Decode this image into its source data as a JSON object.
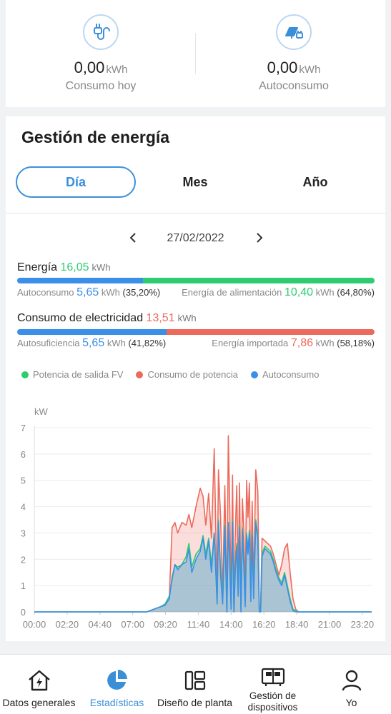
{
  "summary": {
    "consumo": {
      "value": "0,00",
      "unit": "kWh",
      "label": "Consumo hoy",
      "icon": "plug-icon"
    },
    "autoconsumo": {
      "value": "0,00",
      "unit": "kWh",
      "label": "Autoconsumo",
      "icon": "solar-panel-icon"
    }
  },
  "section_title": "Gestión de energía",
  "tabs": [
    {
      "label": "Día",
      "active": true
    },
    {
      "label": "Mes",
      "active": false
    },
    {
      "label": "Año",
      "active": false
    }
  ],
  "date": "27/02/2022",
  "energia": {
    "title": "Energía",
    "value": "16,05",
    "unit": "kWh",
    "bar_fractions": [
      0.352,
      0.648
    ],
    "left": {
      "label": "Autoconsumo",
      "value": "5,65",
      "unit": "kWh",
      "pct": "(35,20%)"
    },
    "right": {
      "label": "Energía de alimentación",
      "value": "10,40",
      "unit": "kWh",
      "pct": "(64,80%)"
    }
  },
  "consumo_elec": {
    "title": "Consumo de electricidad",
    "value": "13,51",
    "unit": "kWh",
    "bar_fractions": [
      0.4182,
      0.5818
    ],
    "left": {
      "label": "Autosuficiencia",
      "value": "5,65",
      "unit": "kWh",
      "pct": "(41,82%)"
    },
    "right": {
      "label": "Energía importada",
      "value": "7,86",
      "unit": "kWh",
      "pct": "(58,18%)"
    }
  },
  "colors": {
    "blue": "#3b8fe8",
    "green": "#2ecc71",
    "red": "#ec6a5c",
    "accent": "#3b8fd9"
  },
  "chart_data": {
    "type": "area",
    "ylabel": "kW",
    "ylim": [
      0,
      7
    ],
    "yticks": [
      "0",
      "1",
      "2",
      "3",
      "4",
      "5",
      "6",
      "7"
    ],
    "xlim": [
      0,
      24
    ],
    "xticks": [
      "00:00",
      "02:20",
      "04:40",
      "07:00",
      "09:20",
      "11:40",
      "14:00",
      "16:20",
      "18:40",
      "21:00",
      "23:20"
    ],
    "legend": [
      "Potencia de salida FV",
      "Consumo de potencia",
      "Autoconsumo"
    ],
    "x": [
      0,
      8.0,
      8.5,
      9.0,
      9.3,
      9.6,
      9.8,
      10.0,
      10.2,
      10.5,
      10.8,
      11.0,
      11.2,
      11.5,
      11.8,
      12.0,
      12.2,
      12.4,
      12.6,
      12.8,
      13.0,
      13.1,
      13.25,
      13.4,
      13.55,
      13.7,
      13.8,
      13.9,
      14.0,
      14.1,
      14.2,
      14.3,
      14.4,
      14.5,
      14.6,
      14.7,
      14.8,
      14.9,
      15.0,
      15.1,
      15.2,
      15.3,
      15.4,
      15.5,
      15.6,
      15.75,
      15.9,
      16.0,
      16.1,
      16.2,
      16.4,
      16.6,
      16.8,
      17.0,
      17.2,
      17.4,
      17.6,
      17.8,
      18.0,
      18.2,
      18.4,
      18.6,
      18.8,
      19.0,
      24
    ],
    "series": [
      {
        "name": "Potencia de salida FV",
        "values": [
          0,
          0,
          0.1,
          0.2,
          0.3,
          0.6,
          1.2,
          1.8,
          1.7,
          1.8,
          2.1,
          2.6,
          1.7,
          2.2,
          2.4,
          2.9,
          2.2,
          2.8,
          1.8,
          3.0,
          0.4,
          3.5,
          1.6,
          0.5,
          3.3,
          0,
          3.4,
          2.0,
          0.2,
          3.5,
          0,
          1.8,
          2.6,
          0.8,
          3.3,
          0.1,
          3.2,
          2.0,
          0.3,
          3.0,
          2.4,
          3.1,
          0.6,
          3.0,
          0.7,
          3.5,
          2.9,
          0.1,
          0.1,
          2.2,
          2.5,
          2.4,
          2.3,
          2.0,
          1.6,
          1.3,
          1.1,
          1.5,
          1.0,
          0.5,
          0.1,
          0.05,
          0,
          0,
          0
        ]
      },
      {
        "name": "Consumo de potencia",
        "values": [
          0,
          0,
          0.1,
          0.2,
          0.3,
          0.5,
          3.2,
          3.4,
          3.0,
          3.4,
          3.3,
          3.7,
          3.2,
          4.0,
          4.7,
          4.4,
          3.3,
          4.5,
          2.8,
          6.2,
          0.6,
          5.4,
          3.6,
          0.7,
          4.8,
          0.2,
          6.7,
          4.0,
          0.4,
          5.2,
          0.2,
          3.0,
          4.8,
          1.2,
          4.9,
          0.3,
          4.3,
          3.2,
          0.6,
          5.0,
          3.6,
          4.9,
          1.2,
          4.2,
          1.0,
          5.4,
          4.6,
          0.2,
          0.2,
          2.8,
          2.7,
          2.6,
          2.5,
          2.2,
          1.8,
          1.4,
          1.8,
          2.4,
          2.6,
          1.5,
          0.5,
          0.1,
          0,
          0,
          0
        ]
      },
      {
        "name": "Autoconsumo",
        "values": [
          0,
          0,
          0.1,
          0.2,
          0.25,
          0.5,
          1.3,
          1.8,
          1.6,
          1.8,
          1.9,
          2.4,
          1.5,
          2.0,
          2.3,
          2.8,
          2.0,
          2.7,
          1.5,
          3.0,
          0.3,
          3.4,
          1.4,
          0.3,
          3.2,
          0,
          3.4,
          1.8,
          0.1,
          3.4,
          0,
          1.6,
          2.5,
          0.6,
          3.2,
          0,
          3.1,
          1.8,
          0.2,
          2.9,
          2.2,
          3.0,
          0.4,
          2.9,
          0.5,
          3.4,
          2.8,
          0,
          0,
          2.1,
          2.4,
          2.3,
          2.2,
          1.9,
          1.5,
          1.2,
          1.0,
          1.4,
          0.9,
          0.4,
          0.05,
          0,
          0,
          0,
          0
        ]
      }
    ]
  },
  "nav": [
    {
      "label": "Datos generales",
      "icon": "home-bolt-icon",
      "active": false
    },
    {
      "label": "Estadísticas",
      "icon": "pie-chart-icon",
      "active": true
    },
    {
      "label": "Diseño de planta",
      "icon": "layout-icon",
      "active": false
    },
    {
      "label": "Gestión de dispositivos",
      "icon": "device-icon",
      "active": false
    },
    {
      "label": "Yo",
      "icon": "user-icon",
      "active": false
    }
  ]
}
